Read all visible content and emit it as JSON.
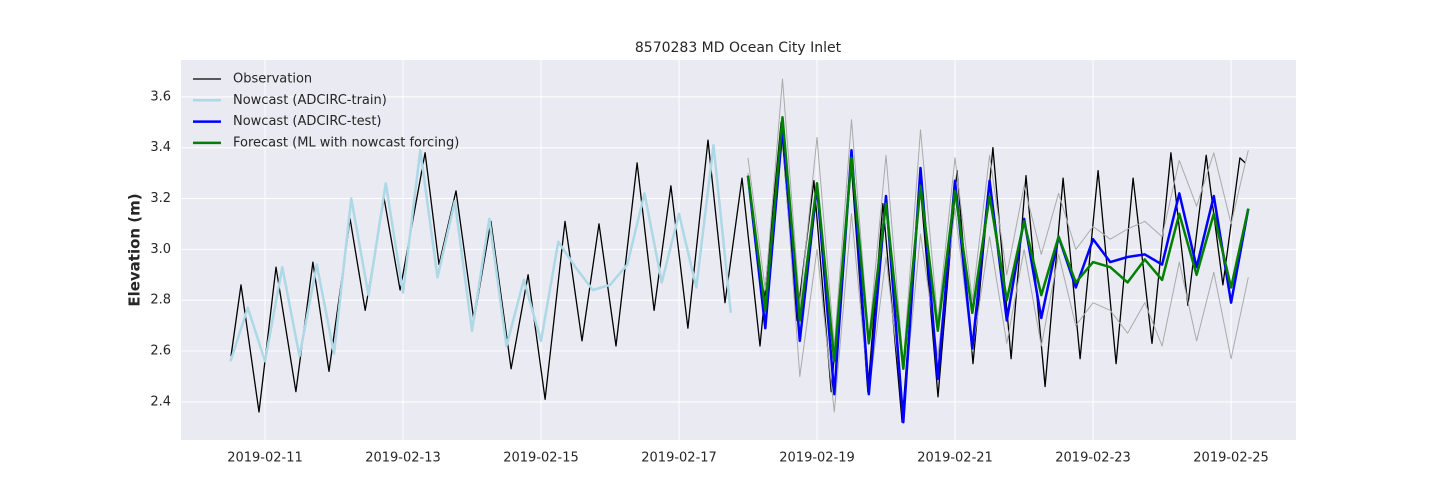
{
  "chart_data": {
    "type": "line",
    "title": "8570283 MD Ocean City Inlet",
    "y_label": "Elevation (m)",
    "xlim": [
      "2019-02-09T18:47",
      "2019-02-25T22:35"
    ],
    "xticks": [
      "2019-02-11",
      "2019-02-13",
      "2019-02-15",
      "2019-02-17",
      "2019-02-19",
      "2019-02-21",
      "2019-02-23",
      "2019-02-25"
    ],
    "ylim": [
      2.25,
      3.745
    ],
    "yticks": [
      2.4,
      2.6,
      2.8,
      {
        "value": 3,
        "label": "3.0"
      },
      3.2,
      3.4,
      3.6
    ],
    "grid": true,
    "legend_position": "upper-left",
    "series": [
      {
        "name": "Observation",
        "color": "#000000",
        "width": 1.3,
        "x": [
          "2019-02-10T12:10",
          "2019-02-10T15:40",
          "2019-02-10T21:55",
          "2019-02-11T03:50",
          "2019-02-11T10:45",
          "2019-02-11T16:40",
          "2019-02-11T22:15",
          "2019-02-12T05:35",
          "2019-02-12T10:50",
          "2019-02-12T17:25",
          "2019-02-12T23:00",
          "2019-02-13T07:40",
          "2019-02-13T12:30",
          "2019-02-13T18:25",
          "2019-02-14T00:40",
          "2019-02-14T06:35",
          "2019-02-14T13:35",
          "2019-02-14T19:30",
          "2019-02-15T01:25",
          "2019-02-15T08:20",
          "2019-02-15T14:15",
          "2019-02-15T20:10",
          "2019-02-16T02:05",
          "2019-02-16T09:25",
          "2019-02-16T15:20",
          "2019-02-16T21:10",
          "2019-02-17T03:05",
          "2019-02-17T10:05",
          "2019-02-17T16:00",
          "2019-02-17T21:55",
          "2019-02-18T04:10",
          "2019-02-18T11:30",
          "2019-02-18T17:00",
          "2019-02-18T22:55",
          "2019-02-19T04:55",
          "2019-02-19T11:50",
          "2019-02-19T17:40",
          "2019-02-19T22:55",
          "2019-02-20T05:35",
          "2019-02-20T11:50",
          "2019-02-20T18:05",
          "2019-02-21T00:40",
          "2019-02-21T06:15",
          "2019-02-21T13:10",
          "2019-02-21T19:30",
          "2019-02-22T00:40",
          "2019-02-22T07:20",
          "2019-02-22T13:35",
          "2019-02-22T19:30",
          "2019-02-23T01:45",
          "2019-02-23T08:00",
          "2019-02-23T13:55",
          "2019-02-23T20:30",
          "2019-02-24T03:05",
          "2019-02-24T09:00",
          "2019-02-24T15:20",
          "2019-02-24T21:10",
          "2019-02-25T03:05",
          "2019-02-25T04:55"
        ],
        "values": [
          2.58,
          2.86,
          2.36,
          2.93,
          2.44,
          2.95,
          2.52,
          3.12,
          2.76,
          3.2,
          2.84,
          3.38,
          2.94,
          3.23,
          2.72,
          3.11,
          2.53,
          2.9,
          2.41,
          3.11,
          2.64,
          3.1,
          2.62,
          3.34,
          2.76,
          3.25,
          2.69,
          3.43,
          2.79,
          3.28,
          2.62,
          3.5,
          2.72,
          3.27,
          2.44,
          3.34,
          2.44,
          3.18,
          2.32,
          3.26,
          2.42,
          3.31,
          2.55,
          3.4,
          2.57,
          3.29,
          2.46,
          3.28,
          2.57,
          3.31,
          2.55,
          3.28,
          2.63,
          3.38,
          2.78,
          3.37,
          2.86,
          3.36,
          3.34
        ]
      },
      {
        "name": "Nowcast (ADCIRC-train)",
        "color": "#add8e6",
        "width": 2.5,
        "x": [
          "2019-02-10T12:00",
          "2019-02-10T18:00",
          "2019-02-11T00:00",
          "2019-02-11T06:00",
          "2019-02-11T12:00",
          "2019-02-11T18:00",
          "2019-02-12T00:00",
          "2019-02-12T06:00",
          "2019-02-12T12:00",
          "2019-02-12T18:00",
          "2019-02-13T00:00",
          "2019-02-13T06:00",
          "2019-02-13T12:00",
          "2019-02-13T18:00",
          "2019-02-14T00:00",
          "2019-02-14T06:00",
          "2019-02-14T12:00",
          "2019-02-14T18:00",
          "2019-02-15T00:00",
          "2019-02-15T06:00",
          "2019-02-15T12:00",
          "2019-02-15T18:00",
          "2019-02-16T00:00",
          "2019-02-16T06:00",
          "2019-02-16T12:00",
          "2019-02-16T18:00",
          "2019-02-17T00:00",
          "2019-02-17T06:00",
          "2019-02-17T12:00",
          "2019-02-17T18:00"
        ],
        "values": [
          2.56,
          2.77,
          2.56,
          2.93,
          2.58,
          2.94,
          2.59,
          3.2,
          2.82,
          3.26,
          2.83,
          3.39,
          2.89,
          3.19,
          2.68,
          3.12,
          2.62,
          2.88,
          2.64,
          3.03,
          2.93,
          2.84,
          2.86,
          2.94,
          3.22,
          2.87,
          3.14,
          2.85,
          3.41,
          2.75
        ]
      },
      {
        "color": "#aaaaaa",
        "width": 1,
        "x": [
          "2019-02-18T00:00",
          "2019-02-18T06:00",
          "2019-02-18T12:00",
          "2019-02-18T18:00",
          "2019-02-19T00:00",
          "2019-02-19T06:00",
          "2019-02-19T12:00",
          "2019-02-19T18:00",
          "2019-02-20T00:00",
          "2019-02-20T06:00",
          "2019-02-20T12:00",
          "2019-02-20T18:00",
          "2019-02-21T00:00",
          "2019-02-21T06:00",
          "2019-02-21T12:00",
          "2019-02-21T18:00",
          "2019-02-22T00:00",
          "2019-02-22T06:00",
          "2019-02-22T12:00",
          "2019-02-22T18:00",
          "2019-02-23T00:00",
          "2019-02-23T06:00",
          "2019-02-23T12:00",
          "2019-02-23T18:00",
          "2019-02-24T00:00",
          "2019-02-24T06:00",
          "2019-02-24T12:00",
          "2019-02-24T18:00",
          "2019-02-25T00:00",
          "2019-02-25T06:00"
        ],
        "values": [
          3.36,
          2.84,
          3.67,
          2.78,
          3.44,
          2.62,
          3.51,
          2.65,
          3.37,
          2.55,
          3.47,
          2.72,
          3.36,
          2.8,
          3.37,
          2.9,
          3.25,
          2.98,
          3.22,
          3.0,
          3.09,
          3.04,
          3.08,
          3.11,
          3.05,
          3.35,
          3.17,
          3.38,
          3.1,
          3.39
        ]
      },
      {
        "color": "#aaaaaa",
        "width": 1,
        "x": [
          "2019-02-18T00:00",
          "2019-02-18T06:00",
          "2019-02-18T12:00",
          "2019-02-18T18:00",
          "2019-02-19T00:00",
          "2019-02-19T06:00",
          "2019-02-19T12:00",
          "2019-02-19T18:00",
          "2019-02-20T00:00",
          "2019-02-20T06:00",
          "2019-02-20T12:00",
          "2019-02-20T18:00",
          "2019-02-21T00:00",
          "2019-02-21T06:00",
          "2019-02-21T12:00",
          "2019-02-21T18:00",
          "2019-02-22T00:00",
          "2019-02-22T06:00",
          "2019-02-22T12:00",
          "2019-02-22T18:00",
          "2019-02-23T00:00",
          "2019-02-23T06:00",
          "2019-02-23T12:00",
          "2019-02-23T18:00",
          "2019-02-24T00:00",
          "2019-02-24T06:00",
          "2019-02-24T12:00",
          "2019-02-24T18:00",
          "2019-02-25T00:00",
          "2019-02-25T06:00"
        ],
        "values": [
          3.3,
          2.72,
          3.45,
          2.5,
          3.0,
          2.36,
          3.14,
          2.43,
          2.97,
          2.37,
          3.06,
          2.58,
          3.16,
          2.6,
          3.05,
          2.63,
          3.0,
          2.62,
          2.98,
          2.7,
          2.79,
          2.76,
          2.67,
          2.79,
          2.62,
          2.95,
          2.64,
          2.91,
          2.57,
          2.89
        ]
      },
      {
        "name": "Nowcast (ADCIRC-test)",
        "color": "#0000ff",
        "width": 2.5,
        "x": [
          "2019-02-18T00:00",
          "2019-02-18T06:00",
          "2019-02-18T12:00",
          "2019-02-18T18:00",
          "2019-02-19T00:00",
          "2019-02-19T06:00",
          "2019-02-19T12:00",
          "2019-02-19T18:00",
          "2019-02-20T00:00",
          "2019-02-20T06:00",
          "2019-02-20T12:00",
          "2019-02-20T18:00",
          "2019-02-21T00:00",
          "2019-02-21T06:00",
          "2019-02-21T12:00",
          "2019-02-21T18:00",
          "2019-02-22T00:00",
          "2019-02-22T06:00",
          "2019-02-22T12:00",
          "2019-02-22T18:00",
          "2019-02-23T00:00",
          "2019-02-23T06:00",
          "2019-02-23T12:00",
          "2019-02-23T18:00",
          "2019-02-24T00:00",
          "2019-02-24T06:00",
          "2019-02-24T12:00",
          "2019-02-24T18:00",
          "2019-02-25T00:00",
          "2019-02-25T06:00"
        ],
        "values": [
          3.29,
          2.69,
          3.48,
          2.64,
          3.25,
          2.43,
          3.39,
          2.43,
          3.21,
          2.32,
          3.32,
          2.49,
          3.27,
          2.61,
          3.27,
          2.72,
          3.12,
          2.73,
          3.05,
          2.85,
          3.04,
          2.95,
          2.97,
          2.98,
          2.94,
          3.22,
          2.93,
          3.21,
          2.79,
          3.16
        ]
      },
      {
        "name": "Forecast (ML with nowcast forcing)",
        "color": "#008000",
        "width": 2.5,
        "x": [
          "2019-02-18T00:00",
          "2019-02-18T06:00",
          "2019-02-18T12:00",
          "2019-02-18T18:00",
          "2019-02-19T00:00",
          "2019-02-19T06:00",
          "2019-02-19T12:00",
          "2019-02-19T18:00",
          "2019-02-20T00:00",
          "2019-02-20T06:00",
          "2019-02-20T12:00",
          "2019-02-20T18:00",
          "2019-02-21T00:00",
          "2019-02-21T06:00",
          "2019-02-21T12:00",
          "2019-02-21T18:00",
          "2019-02-22T00:00",
          "2019-02-22T06:00",
          "2019-02-22T12:00",
          "2019-02-22T18:00",
          "2019-02-23T00:00",
          "2019-02-23T06:00",
          "2019-02-23T12:00",
          "2019-02-23T18:00",
          "2019-02-24T00:00",
          "2019-02-24T06:00",
          "2019-02-24T12:00",
          "2019-02-24T18:00",
          "2019-02-25T00:00",
          "2019-02-25T06:00"
        ],
        "values": [
          3.29,
          2.76,
          3.52,
          2.72,
          3.26,
          2.56,
          3.36,
          2.63,
          3.18,
          2.53,
          3.25,
          2.68,
          3.23,
          2.75,
          3.21,
          2.8,
          3.11,
          2.82,
          3.05,
          2.87,
          2.95,
          2.93,
          2.87,
          2.96,
          2.88,
          3.14,
          2.9,
          3.14,
          2.85,
          3.16
        ]
      }
    ]
  }
}
